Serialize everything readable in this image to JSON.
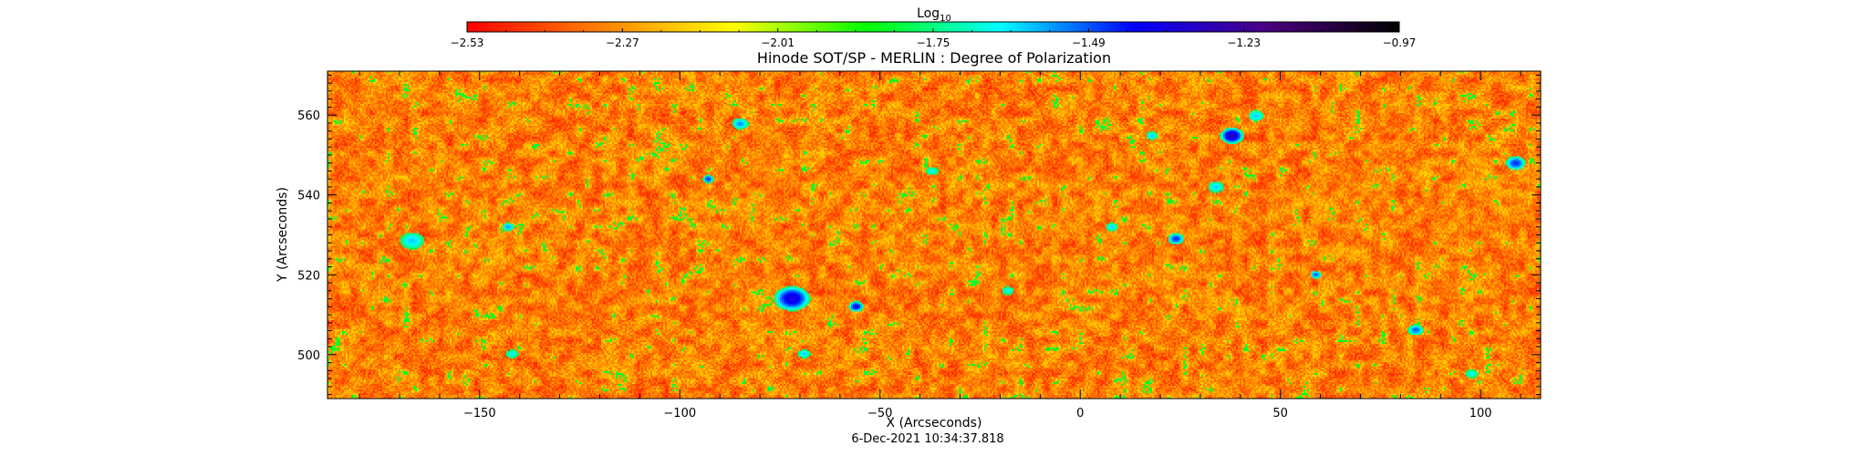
{
  "colorbar": {
    "label_main": "Log",
    "label_sub": "10",
    "ticks": [
      "-2.53",
      "-2.27",
      "-2.01",
      "-1.75",
      "-1.49",
      "-1.23",
      "-0.97"
    ],
    "range": [
      -2.53,
      -0.97
    ],
    "colors": [
      "#ff0000",
      "#ff8000",
      "#ffff00",
      "#00ff00",
      "#00ffff",
      "#0000ff",
      "#4b0082",
      "#000000"
    ]
  },
  "chart_data": {
    "type": "heatmap",
    "title": "Hinode SOT/SP - MERLIN : Degree of Polarization",
    "xlabel": "X (Arcseconds)",
    "ylabel": "Y (Arcseconds)",
    "xlim": [
      -188,
      115
    ],
    "ylim": [
      489,
      571
    ],
    "xticks": [
      -150,
      -100,
      -50,
      0,
      50,
      100
    ],
    "yticks": [
      500,
      520,
      540,
      560
    ],
    "x_tick_labels": [
      "−150",
      "−100",
      "−50",
      "0",
      "50",
      "100"
    ],
    "y_tick_labels": [
      "500",
      "520",
      "540",
      "560"
    ],
    "value_scale": "log10",
    "background_level": -2.3,
    "features": [
      {
        "x": -72,
        "y": 514,
        "level": -1.35,
        "r": 4.5
      },
      {
        "x": -56,
        "y": 512,
        "level": -1.4,
        "r": 2
      },
      {
        "x": -167,
        "y": 528.5,
        "level": -1.6,
        "r": 3
      },
      {
        "x": -143,
        "y": 532,
        "level": -1.55,
        "r": 1.5
      },
      {
        "x": -93,
        "y": 544,
        "level": -1.45,
        "r": 1.5
      },
      {
        "x": -85,
        "y": 558,
        "level": -1.55,
        "r": 2
      },
      {
        "x": -69,
        "y": 500,
        "level": -1.6,
        "r": 1.5
      },
      {
        "x": 38,
        "y": 555,
        "level": -1.3,
        "r": 3
      },
      {
        "x": 44,
        "y": 560,
        "level": -1.6,
        "r": 2
      },
      {
        "x": 34,
        "y": 542,
        "level": -1.6,
        "r": 2
      },
      {
        "x": 24,
        "y": 529,
        "level": -1.45,
        "r": 2
      },
      {
        "x": 18,
        "y": 555,
        "level": -1.6,
        "r": 1.5
      },
      {
        "x": 59,
        "y": 520,
        "level": -1.5,
        "r": 1.5
      },
      {
        "x": 84,
        "y": 506,
        "level": -1.5,
        "r": 2
      },
      {
        "x": 109,
        "y": 548,
        "level": -1.45,
        "r": 2.5
      },
      {
        "x": -37,
        "y": 546,
        "level": -1.65,
        "r": 1.5
      },
      {
        "x": -142,
        "y": 500,
        "level": -1.65,
        "r": 1.5
      },
      {
        "x": 98,
        "y": 495,
        "level": -1.65,
        "r": 1.5
      },
      {
        "x": 8,
        "y": 532,
        "level": -1.6,
        "r": 1.5
      },
      {
        "x": -18,
        "y": 516,
        "level": -1.65,
        "r": 1.5
      }
    ]
  },
  "footer": {
    "timestamp": "6-Dec-2021 10:34:37.818"
  }
}
